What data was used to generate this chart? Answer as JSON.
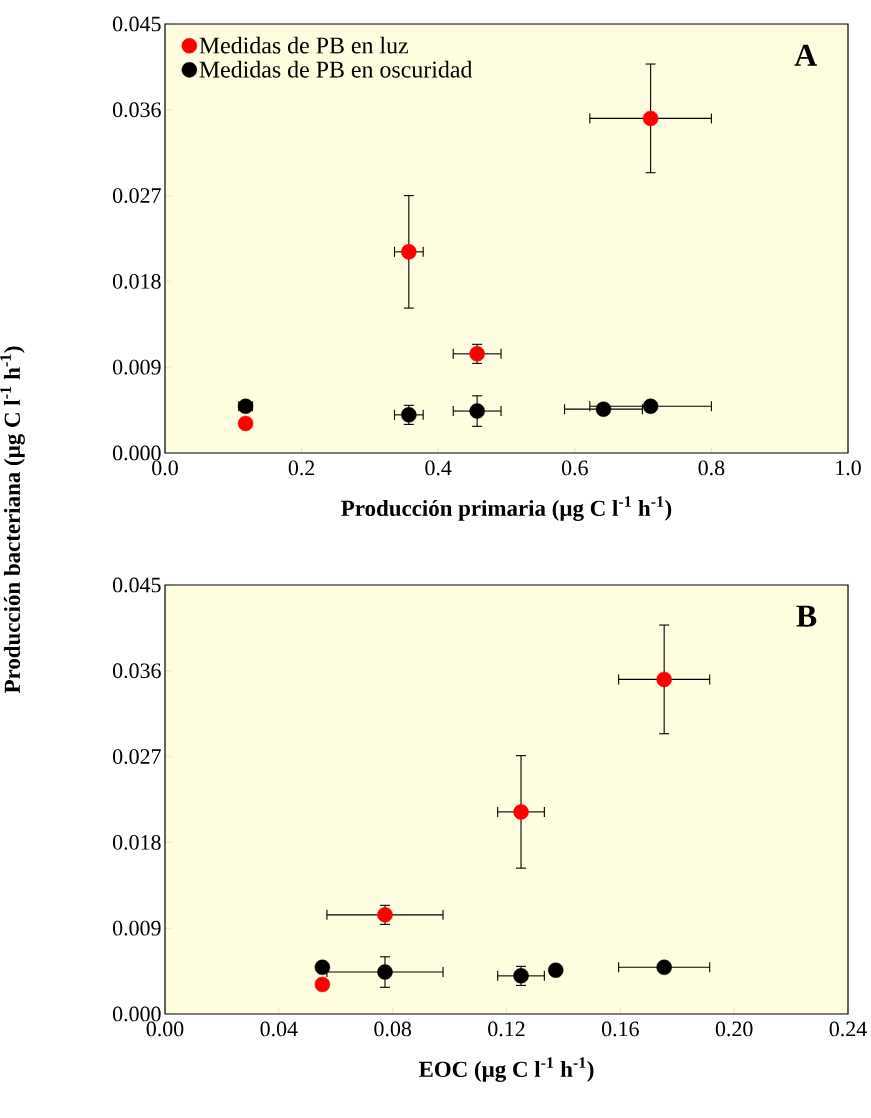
{
  "chart_data": [
    {
      "type": "scatter",
      "xlabel": "Producción primaria (µg C l$^{-1}$ h$^{-1}$)",
      "ylabel": "Producción bacteriana (µg C l$^{-1}$ h$^{-1}$)",
      "annotations": [
        "A"
      ],
      "xlim": [
        0,
        1
      ],
      "ylim": [
        0,
        0.045
      ],
      "xticks": [
        {
          "value": 0,
          "label": "0.0"
        },
        {
          "value": 0.2,
          "label": "0.2"
        },
        {
          "value": 0.4,
          "label": "0.4"
        },
        {
          "value": 0.6,
          "label": "0.6"
        },
        {
          "value": 0.8,
          "label": "0.8"
        },
        {
          "value": 1,
          "label": "1.0"
        }
      ],
      "yticks": [
        {
          "value": 0,
          "label": "0.000"
        },
        {
          "value": 0.009,
          "label": "0.009"
        },
        {
          "value": 0.018,
          "label": "0.018"
        },
        {
          "value": 0.027,
          "label": "0.027"
        },
        {
          "value": 0.036,
          "label": "0.036"
        },
        {
          "value": 0.045,
          "label": "0.045"
        }
      ],
      "legend": "top left",
      "series": [
        {
          "name": "Medidas de PB en luz",
          "color": "#ff0000",
          "x": [
            0.118,
            0.357,
            0.457,
            0.711
          ],
          "values": [
            0.0031,
            0.0211,
            0.0104,
            0.0351
          ],
          "errors": [
            null,
            0.0059,
            0.001,
            0.0057
          ],
          "xerrors": [
            null,
            0.021,
            0.035,
            0.089
          ]
        },
        {
          "name": "Medidas de PB en oscuridad",
          "color": "#000000",
          "x": [
            0.118,
            0.357,
            0.457,
            0.642,
            0.711
          ],
          "values": [
            0.0049,
            0.004,
            0.0044,
            0.0046,
            0.0049
          ],
          "errors": [
            null,
            0.001,
            0.0016,
            0.0005,
            0.0003
          ],
          "xerrors": [
            0.01,
            0.021,
            0.035,
            0.057,
            0.089
          ]
        }
      ]
    },
    {
      "type": "scatter",
      "xlabel": "EOC (µg C l$^{-1}$ h$^{-1}$)",
      "annotations": [
        "B"
      ],
      "xlim": [
        0,
        0.24
      ],
      "ylim": [
        0,
        0.045
      ],
      "xticks": [
        {
          "value": 0,
          "label": "0.00"
        },
        {
          "value": 0.04,
          "label": "0.04"
        },
        {
          "value": 0.08,
          "label": "0.08"
        },
        {
          "value": 0.12,
          "label": "0.12"
        },
        {
          "value": 0.16,
          "label": "0.16"
        },
        {
          "value": 0.2,
          "label": "0.20"
        },
        {
          "value": 0.24,
          "label": "0.24"
        }
      ],
      "yticks": [
        {
          "value": 0,
          "label": "0.000"
        },
        {
          "value": 0.009,
          "label": "0.009"
        },
        {
          "value": 0.018,
          "label": "0.018"
        },
        {
          "value": 0.027,
          "label": "0.027"
        },
        {
          "value": 0.036,
          "label": "0.036"
        },
        {
          "value": 0.045,
          "label": "0.045"
        }
      ],
      "series": [
        {
          "color": "#ff0000",
          "x": [
            0.0553,
            0.0773,
            0.1251,
            0.1754
          ],
          "values": [
            0.0031,
            0.0104,
            0.0212,
            0.0351
          ],
          "errors": [
            null,
            0.001,
            0.0059,
            0.0057
          ],
          "xerrors": [
            null,
            0.0204,
            0.0082,
            0.016
          ]
        },
        {
          "color": "#000000",
          "x": [
            0.0553,
            0.0773,
            0.1251,
            0.1373,
            0.1754
          ],
          "values": [
            0.0049,
            0.0044,
            0.004,
            0.0046,
            0.0049
          ],
          "errors": [
            null,
            0.0016,
            0.001,
            0.0005,
            0.0003
          ],
          "xerrors": [
            null,
            0.0204,
            0.0082,
            null,
            0.016
          ]
        }
      ]
    }
  ]
}
